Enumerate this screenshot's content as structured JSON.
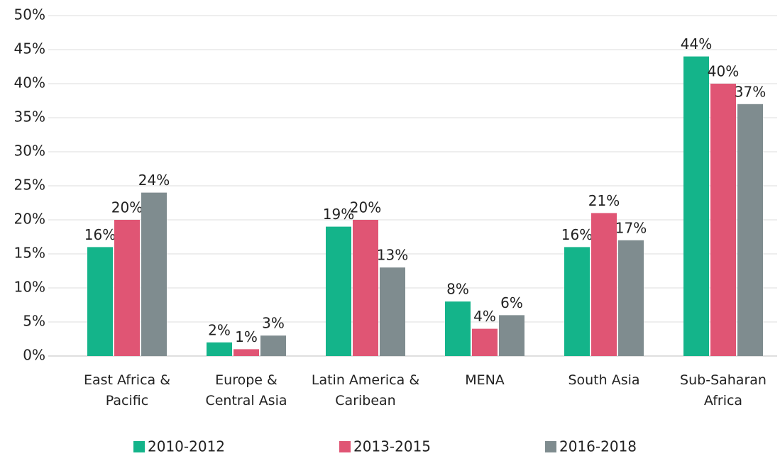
{
  "chart_data": {
    "type": "bar",
    "categories": [
      "East Africa &\nPacific",
      "Europe &\nCentral Asia",
      "Latin America &\nCaribean",
      "MENA",
      "South Asia",
      "Sub-Saharan\nAfrica"
    ],
    "series": [
      {
        "name": "2010-2012",
        "color": "#14b48a",
        "values": [
          16,
          2,
          19,
          8,
          16,
          44
        ],
        "value_labels": [
          "16%",
          "2%",
          "19%",
          "8%",
          "16%",
          "44%"
        ]
      },
      {
        "name": "2013-2015",
        "color": "#e05574",
        "values": [
          20,
          1,
          20,
          4,
          21,
          40
        ],
        "value_labels": [
          "20%",
          "1%",
          "20%",
          "4%",
          "21%",
          "40%"
        ]
      },
      {
        "name": "2016-2018",
        "color": "#7f8c8f",
        "values": [
          24,
          3,
          13,
          6,
          17,
          37
        ],
        "value_labels": [
          "24%",
          "3%",
          "13%",
          "6%",
          "17%",
          "37%"
        ]
      }
    ],
    "ylim": [
      0,
      50
    ],
    "yticks": [
      {
        "value": 0,
        "label": "0%"
      },
      {
        "value": 5,
        "label": "5%"
      },
      {
        "value": 10,
        "label": "10%"
      },
      {
        "value": 15,
        "label": "15%"
      },
      {
        "value": 20,
        "label": "20%"
      },
      {
        "value": 25,
        "label": "25%"
      },
      {
        "value": 30,
        "label": "30%"
      },
      {
        "value": 35,
        "label": "35%"
      },
      {
        "value": 40,
        "label": "40%"
      },
      {
        "value": 45,
        "label": "45%"
      },
      {
        "value": 50,
        "label": "50%"
      }
    ],
    "grid": true
  }
}
